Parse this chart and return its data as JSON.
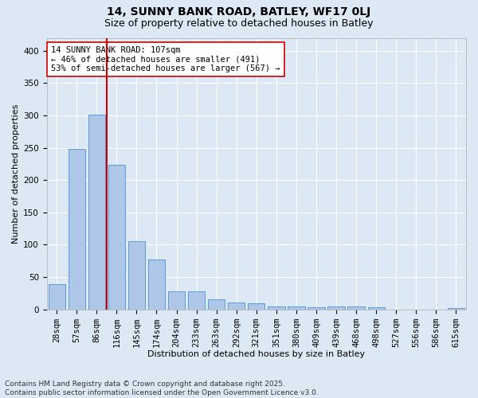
{
  "title": "14, SUNNY BANK ROAD, BATLEY, WF17 0LJ",
  "subtitle": "Size of property relative to detached houses in Batley",
  "xlabel": "Distribution of detached houses by size in Batley",
  "ylabel": "Number of detached properties",
  "categories": [
    "28sqm",
    "57sqm",
    "86sqm",
    "116sqm",
    "145sqm",
    "174sqm",
    "204sqm",
    "233sqm",
    "263sqm",
    "292sqm",
    "321sqm",
    "351sqm",
    "380sqm",
    "409sqm",
    "439sqm",
    "468sqm",
    "498sqm",
    "527sqm",
    "556sqm",
    "586sqm",
    "615sqm"
  ],
  "values": [
    39,
    248,
    301,
    224,
    106,
    77,
    28,
    28,
    16,
    10,
    9,
    5,
    4,
    3,
    4,
    4,
    3,
    0,
    0,
    0,
    2
  ],
  "bar_color": "#aec6e8",
  "bar_edge_color": "#5b9bd5",
  "bg_color": "#dce9f5",
  "grid_color": "#ffffff",
  "vline_color": "#cc0000",
  "vline_position": 2.5,
  "annotation_text": "14 SUNNY BANK ROAD: 107sqm\n← 46% of detached houses are smaller (491)\n53% of semi-detached houses are larger (567) →",
  "annotation_box_color": "#ffffff",
  "annotation_box_edge": "#cc0000",
  "ylim": [
    0,
    420
  ],
  "yticks": [
    0,
    50,
    100,
    150,
    200,
    250,
    300,
    350,
    400
  ],
  "footer": "Contains HM Land Registry data © Crown copyright and database right 2025.\nContains public sector information licensed under the Open Government Licence v3.0.",
  "title_fontsize": 10,
  "subtitle_fontsize": 9,
  "axis_label_fontsize": 8,
  "tick_fontsize": 7.5,
  "annotation_fontsize": 7.5,
  "footer_fontsize": 6.5
}
